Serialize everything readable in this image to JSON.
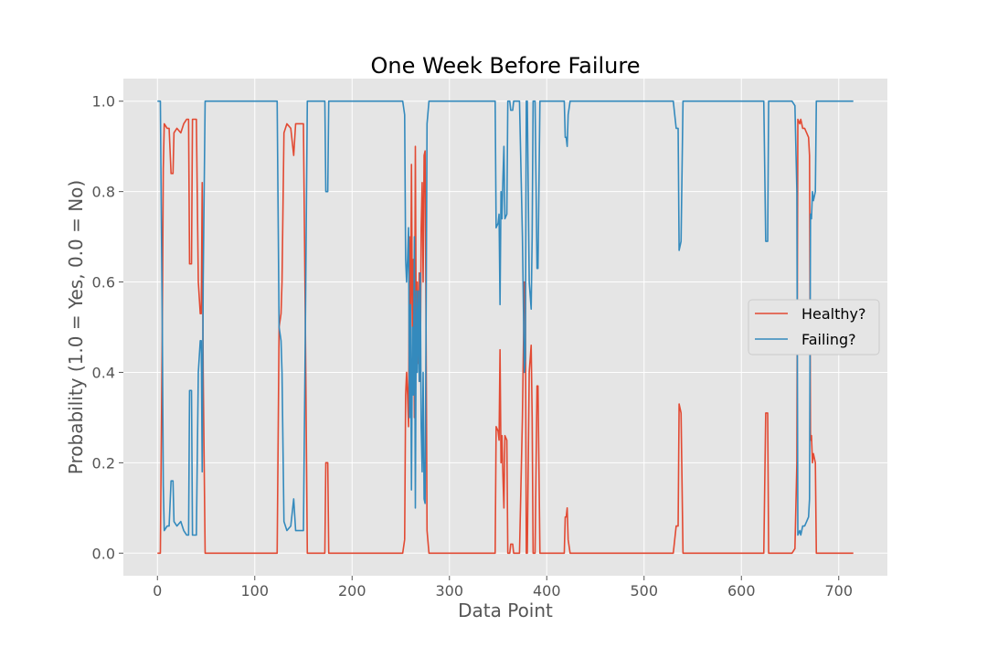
{
  "chart_data": {
    "type": "line",
    "title": "One Week Before Failure",
    "xlabel": "Data Point",
    "ylabel": "Probability (1.0 = Yes, 0.0 = No)",
    "xlim": [
      -35,
      750
    ],
    "ylim": [
      -0.05,
      1.05
    ],
    "xticks": [
      0,
      100,
      200,
      300,
      400,
      500,
      600,
      700
    ],
    "yticks": [
      0.0,
      0.2,
      0.4,
      0.6,
      0.8,
      1.0
    ],
    "xtick_labels": [
      "0",
      "100",
      "200",
      "300",
      "400",
      "500",
      "600",
      "700"
    ],
    "ytick_labels": [
      "0.0",
      "0.2",
      "0.4",
      "0.6",
      "0.8",
      "1.0"
    ],
    "grid": true,
    "legend_position": "center-right",
    "colors": {
      "Healthy?": "#e24a33",
      "Failing?": "#348abd",
      "background": "#e5e5e5",
      "grid": "#ffffff"
    },
    "series": [
      {
        "name": "Healthy?",
        "points": [
          [
            0,
            0.0
          ],
          [
            3,
            0.0
          ],
          [
            5,
            0.5
          ],
          [
            6,
            0.85
          ],
          [
            7,
            0.95
          ],
          [
            10,
            0.94
          ],
          [
            12,
            0.94
          ],
          [
            14,
            0.84
          ],
          [
            16,
            0.84
          ],
          [
            17,
            0.93
          ],
          [
            20,
            0.94
          ],
          [
            24,
            0.93
          ],
          [
            27,
            0.95
          ],
          [
            30,
            0.96
          ],
          [
            32,
            0.96
          ],
          [
            33,
            0.64
          ],
          [
            35,
            0.64
          ],
          [
            36,
            0.96
          ],
          [
            40,
            0.96
          ],
          [
            42,
            0.6
          ],
          [
            44,
            0.53
          ],
          [
            45,
            0.53
          ],
          [
            46,
            0.82
          ],
          [
            47,
            0.4
          ],
          [
            49,
            0.0
          ],
          [
            123,
            0.0
          ],
          [
            125,
            0.5
          ],
          [
            127,
            0.53
          ],
          [
            128,
            0.6
          ],
          [
            130,
            0.93
          ],
          [
            133,
            0.95
          ],
          [
            137,
            0.94
          ],
          [
            140,
            0.88
          ],
          [
            142,
            0.95
          ],
          [
            145,
            0.95
          ],
          [
            150,
            0.95
          ],
          [
            152,
            0.5
          ],
          [
            154,
            0.0
          ],
          [
            172,
            0.0
          ],
          [
            173,
            0.2
          ],
          [
            175,
            0.2
          ],
          [
            176,
            0.0
          ],
          [
            252,
            0.0
          ],
          [
            254,
            0.03
          ],
          [
            255,
            0.35
          ],
          [
            256,
            0.4
          ],
          [
            257,
            0.35
          ],
          [
            258,
            0.28
          ],
          [
            259,
            0.7
          ],
          [
            260,
            0.45
          ],
          [
            261,
            0.86
          ],
          [
            262,
            0.5
          ],
          [
            263,
            0.65
          ],
          [
            264,
            0.3
          ],
          [
            265,
            0.9
          ],
          [
            266,
            0.42
          ],
          [
            267,
            0.6
          ],
          [
            268,
            0.42
          ],
          [
            269,
            0.62
          ],
          [
            270,
            0.38
          ],
          [
            271,
            0.72
          ],
          [
            272,
            0.82
          ],
          [
            273,
            0.6
          ],
          [
            274,
            0.88
          ],
          [
            275,
            0.89
          ],
          [
            276,
            0.5
          ],
          [
            277,
            0.05
          ],
          [
            279,
            0.0
          ],
          [
            282,
            0.0
          ],
          [
            345,
            0.0
          ],
          [
            347,
            0.0
          ],
          [
            348,
            0.28
          ],
          [
            350,
            0.27
          ],
          [
            351,
            0.25
          ],
          [
            352,
            0.45
          ],
          [
            353,
            0.2
          ],
          [
            354,
            0.26
          ],
          [
            355,
            0.17
          ],
          [
            356,
            0.1
          ],
          [
            357,
            0.26
          ],
          [
            359,
            0.25
          ],
          [
            360,
            0.0
          ],
          [
            362,
            0.0
          ],
          [
            363,
            0.02
          ],
          [
            365,
            0.02
          ],
          [
            366,
            0.0
          ],
          [
            372,
            0.0
          ],
          [
            375,
            0.3
          ],
          [
            377,
            0.6
          ],
          [
            378,
            0.57
          ],
          [
            379,
            0.0
          ],
          [
            380,
            0.0
          ],
          [
            382,
            0.4
          ],
          [
            384,
            0.46
          ],
          [
            385,
            0.3
          ],
          [
            386,
            0.0
          ],
          [
            388,
            0.0
          ],
          [
            390,
            0.37
          ],
          [
            391,
            0.37
          ],
          [
            393,
            0.0
          ],
          [
            395,
            0.0
          ],
          [
            398,
            0.0
          ],
          [
            400,
            0.0
          ],
          [
            418,
            0.0
          ],
          [
            419,
            0.08
          ],
          [
            420,
            0.08
          ],
          [
            421,
            0.1
          ],
          [
            422,
            0.03
          ],
          [
            424,
            0.0
          ],
          [
            530,
            0.0
          ],
          [
            533,
            0.06
          ],
          [
            535,
            0.06
          ],
          [
            536,
            0.33
          ],
          [
            538,
            0.31
          ],
          [
            540,
            0.0
          ],
          [
            623,
            0.0
          ],
          [
            625,
            0.31
          ],
          [
            627,
            0.31
          ],
          [
            628,
            0.0
          ],
          [
            652,
            0.0
          ],
          [
            655,
            0.01
          ],
          [
            657,
            0.2
          ],
          [
            658,
            0.96
          ],
          [
            660,
            0.95
          ],
          [
            661,
            0.96
          ],
          [
            663,
            0.94
          ],
          [
            665,
            0.94
          ],
          [
            667,
            0.93
          ],
          [
            669,
            0.92
          ],
          [
            670,
            0.88
          ],
          [
            671,
            0.25
          ],
          [
            672,
            0.26
          ],
          [
            673,
            0.2
          ],
          [
            674,
            0.22
          ],
          [
            676,
            0.2
          ],
          [
            677,
            0.0
          ],
          [
            715,
            0.0
          ]
        ]
      },
      {
        "name": "Failing?",
        "points": [
          [
            0,
            1.0
          ],
          [
            3,
            1.0
          ],
          [
            5,
            0.5
          ],
          [
            6,
            0.15
          ],
          [
            7,
            0.05
          ],
          [
            10,
            0.06
          ],
          [
            12,
            0.06
          ],
          [
            14,
            0.16
          ],
          [
            16,
            0.16
          ],
          [
            17,
            0.07
          ],
          [
            20,
            0.06
          ],
          [
            24,
            0.07
          ],
          [
            27,
            0.05
          ],
          [
            30,
            0.04
          ],
          [
            32,
            0.04
          ],
          [
            33,
            0.36
          ],
          [
            35,
            0.36
          ],
          [
            36,
            0.04
          ],
          [
            40,
            0.04
          ],
          [
            42,
            0.4
          ],
          [
            44,
            0.47
          ],
          [
            45,
            0.47
          ],
          [
            46,
            0.18
          ],
          [
            47,
            0.6
          ],
          [
            49,
            1.0
          ],
          [
            123,
            1.0
          ],
          [
            125,
            0.5
          ],
          [
            127,
            0.47
          ],
          [
            128,
            0.4
          ],
          [
            130,
            0.07
          ],
          [
            133,
            0.05
          ],
          [
            137,
            0.06
          ],
          [
            140,
            0.12
          ],
          [
            142,
            0.05
          ],
          [
            145,
            0.05
          ],
          [
            150,
            0.05
          ],
          [
            152,
            0.5
          ],
          [
            154,
            1.0
          ],
          [
            172,
            1.0
          ],
          [
            173,
            0.8
          ],
          [
            175,
            0.8
          ],
          [
            176,
            1.0
          ],
          [
            252,
            1.0
          ],
          [
            254,
            0.97
          ],
          [
            255,
            0.65
          ],
          [
            256,
            0.6
          ],
          [
            257,
            0.65
          ],
          [
            258,
            0.72
          ],
          [
            259,
            0.3
          ],
          [
            260,
            0.55
          ],
          [
            261,
            0.14
          ],
          [
            262,
            0.5
          ],
          [
            263,
            0.35
          ],
          [
            264,
            0.7
          ],
          [
            265,
            0.1
          ],
          [
            266,
            0.58
          ],
          [
            267,
            0.4
          ],
          [
            268,
            0.58
          ],
          [
            269,
            0.38
          ],
          [
            270,
            0.62
          ],
          [
            271,
            0.28
          ],
          [
            272,
            0.18
          ],
          [
            273,
            0.4
          ],
          [
            274,
            0.12
          ],
          [
            275,
            0.11
          ],
          [
            276,
            0.5
          ],
          [
            277,
            0.95
          ],
          [
            279,
            1.0
          ],
          [
            282,
            1.0
          ],
          [
            345,
            1.0
          ],
          [
            347,
            1.0
          ],
          [
            348,
            0.72
          ],
          [
            350,
            0.73
          ],
          [
            351,
            0.75
          ],
          [
            352,
            0.55
          ],
          [
            353,
            0.8
          ],
          [
            354,
            0.74
          ],
          [
            355,
            0.83
          ],
          [
            356,
            0.9
          ],
          [
            357,
            0.74
          ],
          [
            359,
            0.75
          ],
          [
            360,
            1.0
          ],
          [
            362,
            1.0
          ],
          [
            363,
            0.98
          ],
          [
            365,
            0.98
          ],
          [
            366,
            1.0
          ],
          [
            372,
            1.0
          ],
          [
            375,
            0.7
          ],
          [
            377,
            0.4
          ],
          [
            378,
            0.43
          ],
          [
            379,
            1.0
          ],
          [
            380,
            1.0
          ],
          [
            382,
            0.6
          ],
          [
            384,
            0.54
          ],
          [
            385,
            0.7
          ],
          [
            386,
            1.0
          ],
          [
            388,
            1.0
          ],
          [
            390,
            0.63
          ],
          [
            391,
            0.63
          ],
          [
            393,
            1.0
          ],
          [
            395,
            1.0
          ],
          [
            398,
            1.0
          ],
          [
            400,
            1.0
          ],
          [
            418,
            1.0
          ],
          [
            419,
            0.92
          ],
          [
            420,
            0.92
          ],
          [
            421,
            0.9
          ],
          [
            422,
            0.97
          ],
          [
            424,
            1.0
          ],
          [
            530,
            1.0
          ],
          [
            533,
            0.94
          ],
          [
            535,
            0.94
          ],
          [
            536,
            0.67
          ],
          [
            538,
            0.69
          ],
          [
            540,
            1.0
          ],
          [
            623,
            1.0
          ],
          [
            625,
            0.69
          ],
          [
            627,
            0.69
          ],
          [
            628,
            1.0
          ],
          [
            652,
            1.0
          ],
          [
            655,
            0.99
          ],
          [
            657,
            0.8
          ],
          [
            658,
            0.04
          ],
          [
            660,
            0.05
          ],
          [
            661,
            0.04
          ],
          [
            663,
            0.06
          ],
          [
            665,
            0.06
          ],
          [
            667,
            0.07
          ],
          [
            669,
            0.08
          ],
          [
            670,
            0.12
          ],
          [
            671,
            0.75
          ],
          [
            672,
            0.74
          ],
          [
            673,
            0.8
          ],
          [
            674,
            0.78
          ],
          [
            676,
            0.8
          ],
          [
            677,
            1.0
          ],
          [
            715,
            1.0
          ]
        ]
      }
    ]
  }
}
